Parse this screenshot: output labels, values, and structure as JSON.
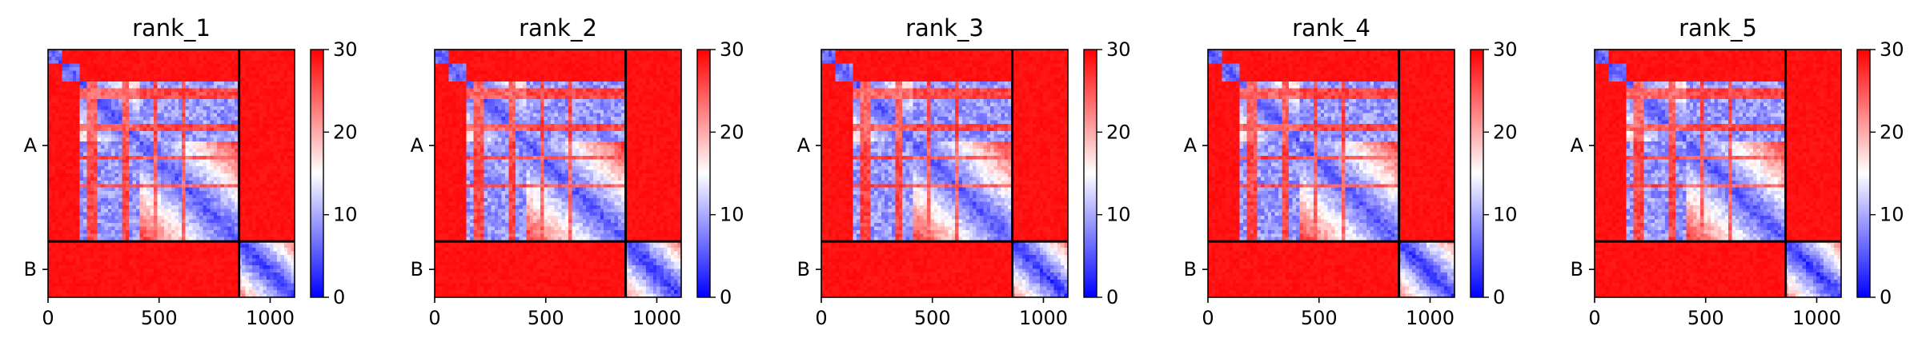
{
  "chart_data": {
    "type": "heatmap",
    "colormap": "bwr",
    "clim": [
      0,
      30
    ],
    "colorbar_ticks": [
      "0",
      "10",
      "20",
      "30"
    ],
    "x_ticks": [
      "0",
      "500",
      "1000"
    ],
    "x_tick_values": [
      0,
      500,
      1000
    ],
    "x_range": [
      0,
      1110
    ],
    "chain_labels": [
      "A",
      "B"
    ],
    "chain_boundary": 860,
    "total_length": 1110,
    "panels": [
      {
        "title": "rank_1"
      },
      {
        "title": "rank_2"
      },
      {
        "title": "rank_3"
      },
      {
        "title": "rank_4"
      },
      {
        "title": "rank_5"
      }
    ]
  }
}
